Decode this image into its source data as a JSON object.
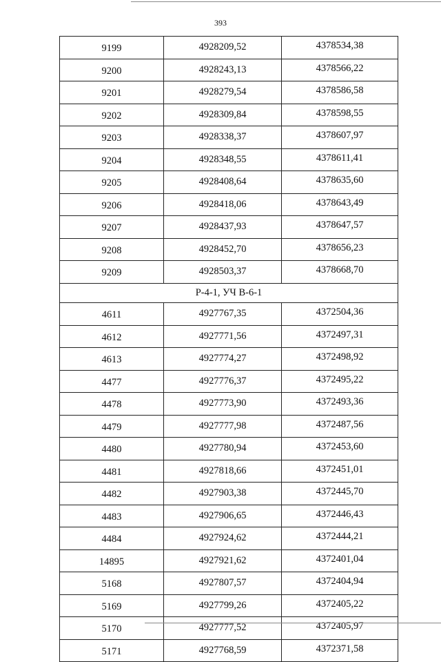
{
  "page_number": "393",
  "groups": [
    {
      "title": "",
      "rows": [
        [
          "9199",
          "4928209,52",
          "4378534,38"
        ],
        [
          "9200",
          "4928243,13",
          "4378566,22"
        ],
        [
          "9201",
          "4928279,54",
          "4378586,58"
        ],
        [
          "9202",
          "4928309,84",
          "4378598,55"
        ],
        [
          "9203",
          "4928338,37",
          "4378607,97"
        ],
        [
          "9204",
          "4928348,55",
          "4378611,41"
        ],
        [
          "9205",
          "4928408,64",
          "4378635,60"
        ],
        [
          "9206",
          "4928418,06",
          "4378643,49"
        ],
        [
          "9207",
          "4928437,93",
          "4378647,57"
        ],
        [
          "9208",
          "4928452,70",
          "4378656,23"
        ],
        [
          "9209",
          "4928503,37",
          "4378668,70"
        ]
      ]
    },
    {
      "title": "Р-4-1, УЧ В-6-1",
      "rows": [
        [
          "4611",
          "4927767,35",
          "4372504,36"
        ],
        [
          "4612",
          "4927771,56",
          "4372497,31"
        ],
        [
          "4613",
          "4927774,27",
          "4372498,92"
        ],
        [
          "4477",
          "4927776,37",
          "4372495,22"
        ],
        [
          "4478",
          "4927773,90",
          "4372493,36"
        ],
        [
          "4479",
          "4927777,98",
          "4372487,56"
        ],
        [
          "4480",
          "4927780,94",
          "4372453,60"
        ],
        [
          "4481",
          "4927818,66",
          "4372451,01"
        ],
        [
          "4482",
          "4927903,38",
          "4372445,70"
        ],
        [
          "4483",
          "4927906,65",
          "4372446,43"
        ],
        [
          "4484",
          "4927924,62",
          "4372444,21"
        ],
        [
          "14895",
          "4927921,62",
          "4372401,04"
        ],
        [
          "5168",
          "4927807,57",
          "4372404,94"
        ],
        [
          "5169",
          "4927799,26",
          "4372405,22"
        ],
        [
          "5170",
          "4927777,52",
          "4372405,97"
        ],
        [
          "5171",
          "4927768,59",
          "4372371,58"
        ]
      ]
    }
  ]
}
